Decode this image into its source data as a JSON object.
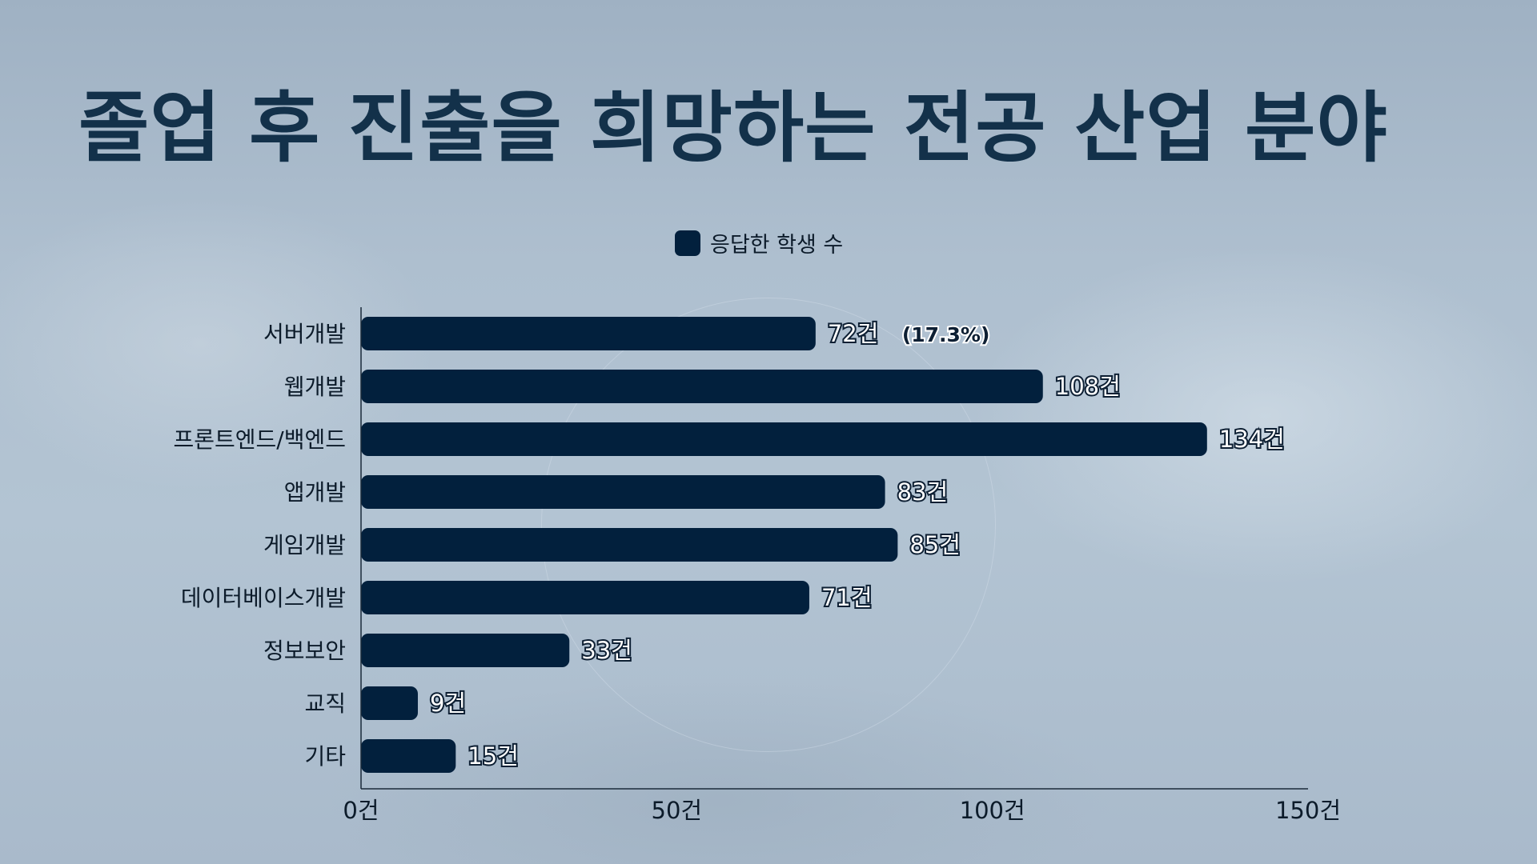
{
  "title": "졸업 후 진출을 희망하는 전공 산업 분야",
  "colors": {
    "bar": "#02203d",
    "title": "#13314a",
    "axis": "#1a2a3a"
  },
  "chart_data": {
    "type": "bar",
    "orientation": "horizontal",
    "categories": [
      "서버개발",
      "웹개발",
      "프론트엔드/백엔드",
      "앱개발",
      "게임개발",
      "데이터베이스개발",
      "정보보안",
      "교직",
      "기타"
    ],
    "series": [
      {
        "name": "응답한 학생 수",
        "values": [
          72,
          108,
          134,
          83,
          85,
          71,
          33,
          9,
          15
        ],
        "value_labels": [
          "72건",
          "108건",
          "134건",
          "83건",
          "85건",
          "71건",
          "33건",
          "9건",
          "15건"
        ]
      }
    ],
    "annotations": [
      {
        "category": "서버개발",
        "text": "(17.3%)"
      }
    ],
    "xlim": [
      0,
      150
    ],
    "x_ticks": [
      0,
      50,
      100,
      150
    ],
    "x_tick_labels": [
      "0건",
      "50건",
      "100건",
      "150건"
    ],
    "legend": {
      "position": "top-center",
      "labels": [
        "응답한 학생 수"
      ]
    },
    "grid": false
  }
}
